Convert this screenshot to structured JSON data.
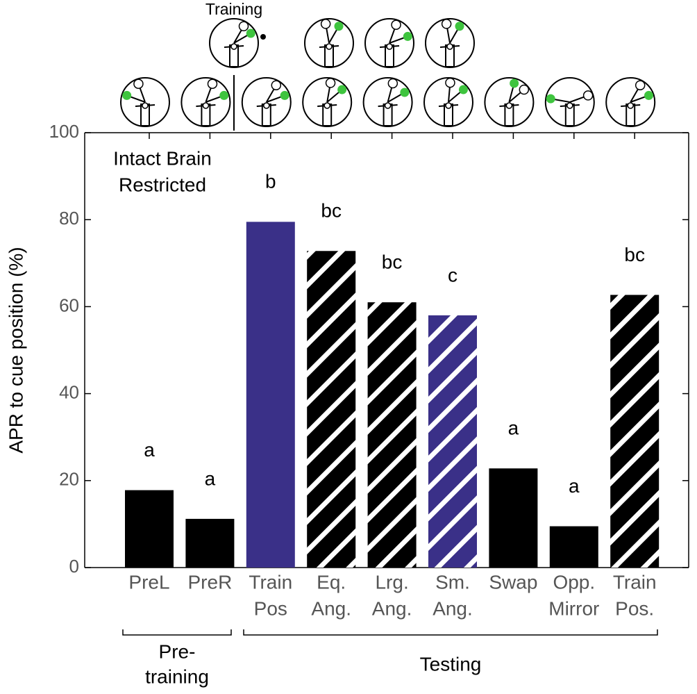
{
  "chart_data": {
    "type": "bar",
    "ylabel": "APR to cue position (%)",
    "categories": [
      [
        "PreL"
      ],
      [
        "PreR"
      ],
      [
        "Train",
        "Pos"
      ],
      [
        "Eq.",
        "Ang."
      ],
      [
        "Lrg.",
        "Ang."
      ],
      [
        "Sm.",
        "Ang."
      ],
      [
        "Swap"
      ],
      [
        "Opp.",
        "Mirror"
      ],
      [
        "Train",
        "Pos."
      ]
    ],
    "values": [
      17.8,
      11.2,
      79.5,
      72.8,
      61,
      58,
      22.8,
      9.5,
      62.7
    ],
    "colors": [
      "#000000",
      "#000000",
      "#3a3088",
      "#000000",
      "#000000",
      "#3a3088",
      "#000000",
      "#000000",
      "#000000"
    ],
    "hatched": [
      false,
      false,
      false,
      true,
      true,
      true,
      false,
      false,
      true
    ],
    "significance_letters": [
      "a",
      "a",
      "b",
      "bc",
      "bc",
      "c",
      "a",
      "a",
      "bc"
    ],
    "ylim": [
      0,
      100
    ],
    "yticks": [
      0,
      20,
      40,
      60,
      80,
      100
    ],
    "annotations": [
      "Intact Brain",
      "Restricted",
      "Training"
    ],
    "groups": [
      {
        "lines": [
          "Pre-",
          "training"
        ]
      },
      {
        "lines": [
          "Testing"
        ]
      }
    ]
  }
}
